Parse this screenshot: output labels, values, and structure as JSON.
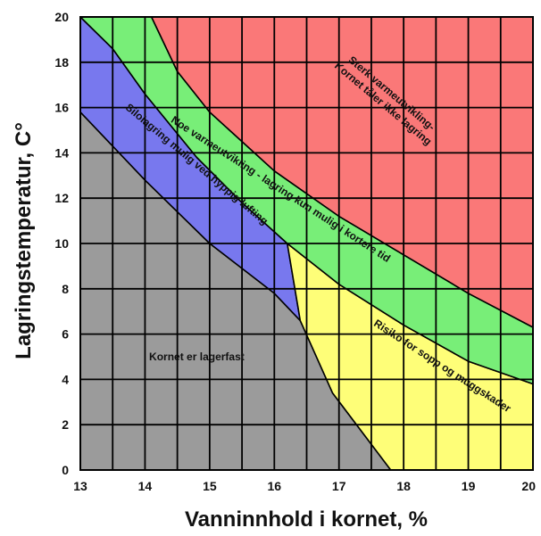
{
  "chart_data": {
    "type": "area",
    "xlabel": "Vanninnhold i kornet, %",
    "ylabel": "Lagringstemperatur, C°",
    "xlim": [
      13,
      20
    ],
    "ylim": [
      0,
      20
    ],
    "x_ticks": [
      "13",
      "14",
      "15",
      "16",
      "17",
      "18",
      "19",
      "20"
    ],
    "y_ticks": [
      "0",
      "2",
      "4",
      "6",
      "8",
      "10",
      "12",
      "14",
      "16",
      "18",
      "20"
    ],
    "grid": true,
    "regions": [
      {
        "name": "Kornet er lagerfast",
        "color": "#9b9b9b",
        "points": [
          [
            13,
            0
          ],
          [
            17.8,
            0
          ],
          [
            16.9,
            3.4
          ],
          [
            16.4,
            6.6
          ],
          [
            16.0,
            7.8
          ],
          [
            15.0,
            10.0
          ],
          [
            14.0,
            12.8
          ],
          [
            13,
            15.8
          ]
        ]
      },
      {
        "name": "Silolagring mulig ved hyppig lufting",
        "color": "#7878ee",
        "points": [
          [
            13,
            15.8
          ],
          [
            14.0,
            12.8
          ],
          [
            15.0,
            10.0
          ],
          [
            16.0,
            7.8
          ],
          [
            16.4,
            6.6
          ],
          [
            16.2,
            10.0
          ],
          [
            15.5,
            11.8
          ],
          [
            14.8,
            13.8
          ],
          [
            14.0,
            16.6
          ],
          [
            13.5,
            18.6
          ],
          [
            13.0,
            20
          ],
          [
            13,
            20
          ]
        ]
      },
      {
        "name": "Risiko for sopp og muggskader",
        "color": "#fefe78",
        "points": [
          [
            16.4,
            6.6
          ],
          [
            16.2,
            10.0
          ],
          [
            17.0,
            8.2
          ],
          [
            18.0,
            6.4
          ],
          [
            19.0,
            4.8
          ],
          [
            20,
            3.8
          ],
          [
            20,
            0
          ],
          [
            17.8,
            0
          ],
          [
            16.9,
            3.4
          ]
        ]
      },
      {
        "name": "Noe varmeutvikling - lagring kun mulig i kortere tid",
        "color": "#78ee78",
        "points": [
          [
            13.0,
            20
          ],
          [
            13.5,
            18.6
          ],
          [
            14.0,
            16.6
          ],
          [
            14.8,
            13.8
          ],
          [
            15.5,
            11.8
          ],
          [
            16.2,
            10.0
          ],
          [
            17.0,
            8.2
          ],
          [
            18.0,
            6.4
          ],
          [
            19.0,
            4.8
          ],
          [
            20,
            3.8
          ],
          [
            20,
            6.3
          ],
          [
            19.0,
            7.8
          ],
          [
            18.0,
            9.5
          ],
          [
            17.0,
            11.2
          ],
          [
            16.0,
            13.2
          ],
          [
            15.0,
            15.8
          ],
          [
            14.5,
            17.6
          ],
          [
            14.1,
            20
          ]
        ]
      },
      {
        "name": "Sterk varmeutvikling- Kornet tåler ikke lagring",
        "color": "#fa7878",
        "points": [
          [
            14.1,
            20
          ],
          [
            14.5,
            17.6
          ],
          [
            15.0,
            15.8
          ],
          [
            16.0,
            13.2
          ],
          [
            17.0,
            11.2
          ],
          [
            18.0,
            9.5
          ],
          [
            19.0,
            7.8
          ],
          [
            20,
            6.3
          ],
          [
            20,
            20
          ]
        ]
      }
    ],
    "annotations": [
      {
        "lines": [
          "Kornet er lagerfast"
        ],
        "x": 14.8,
        "y": 5.0,
        "angle": 0
      },
      {
        "lines": [
          "Silolagring mulig ved hyppig lufting"
        ],
        "x": 14.8,
        "y": 13.5,
        "angle": 40
      },
      {
        "lines": [
          "Noe varmeutvikling - lagring kun mulig i kortere tid"
        ],
        "x": 16.1,
        "y": 12.4,
        "angle": 33
      },
      {
        "lines": [
          "Sterk varmeutvikling-",
          "Kornet tåler ikke lagring"
        ],
        "x": 17.75,
        "y": 16.4,
        "angle": 40
      },
      {
        "lines": [
          "Risiko for sopp og muggskader"
        ],
        "x": 18.6,
        "y": 4.6,
        "angle": 33
      }
    ]
  }
}
